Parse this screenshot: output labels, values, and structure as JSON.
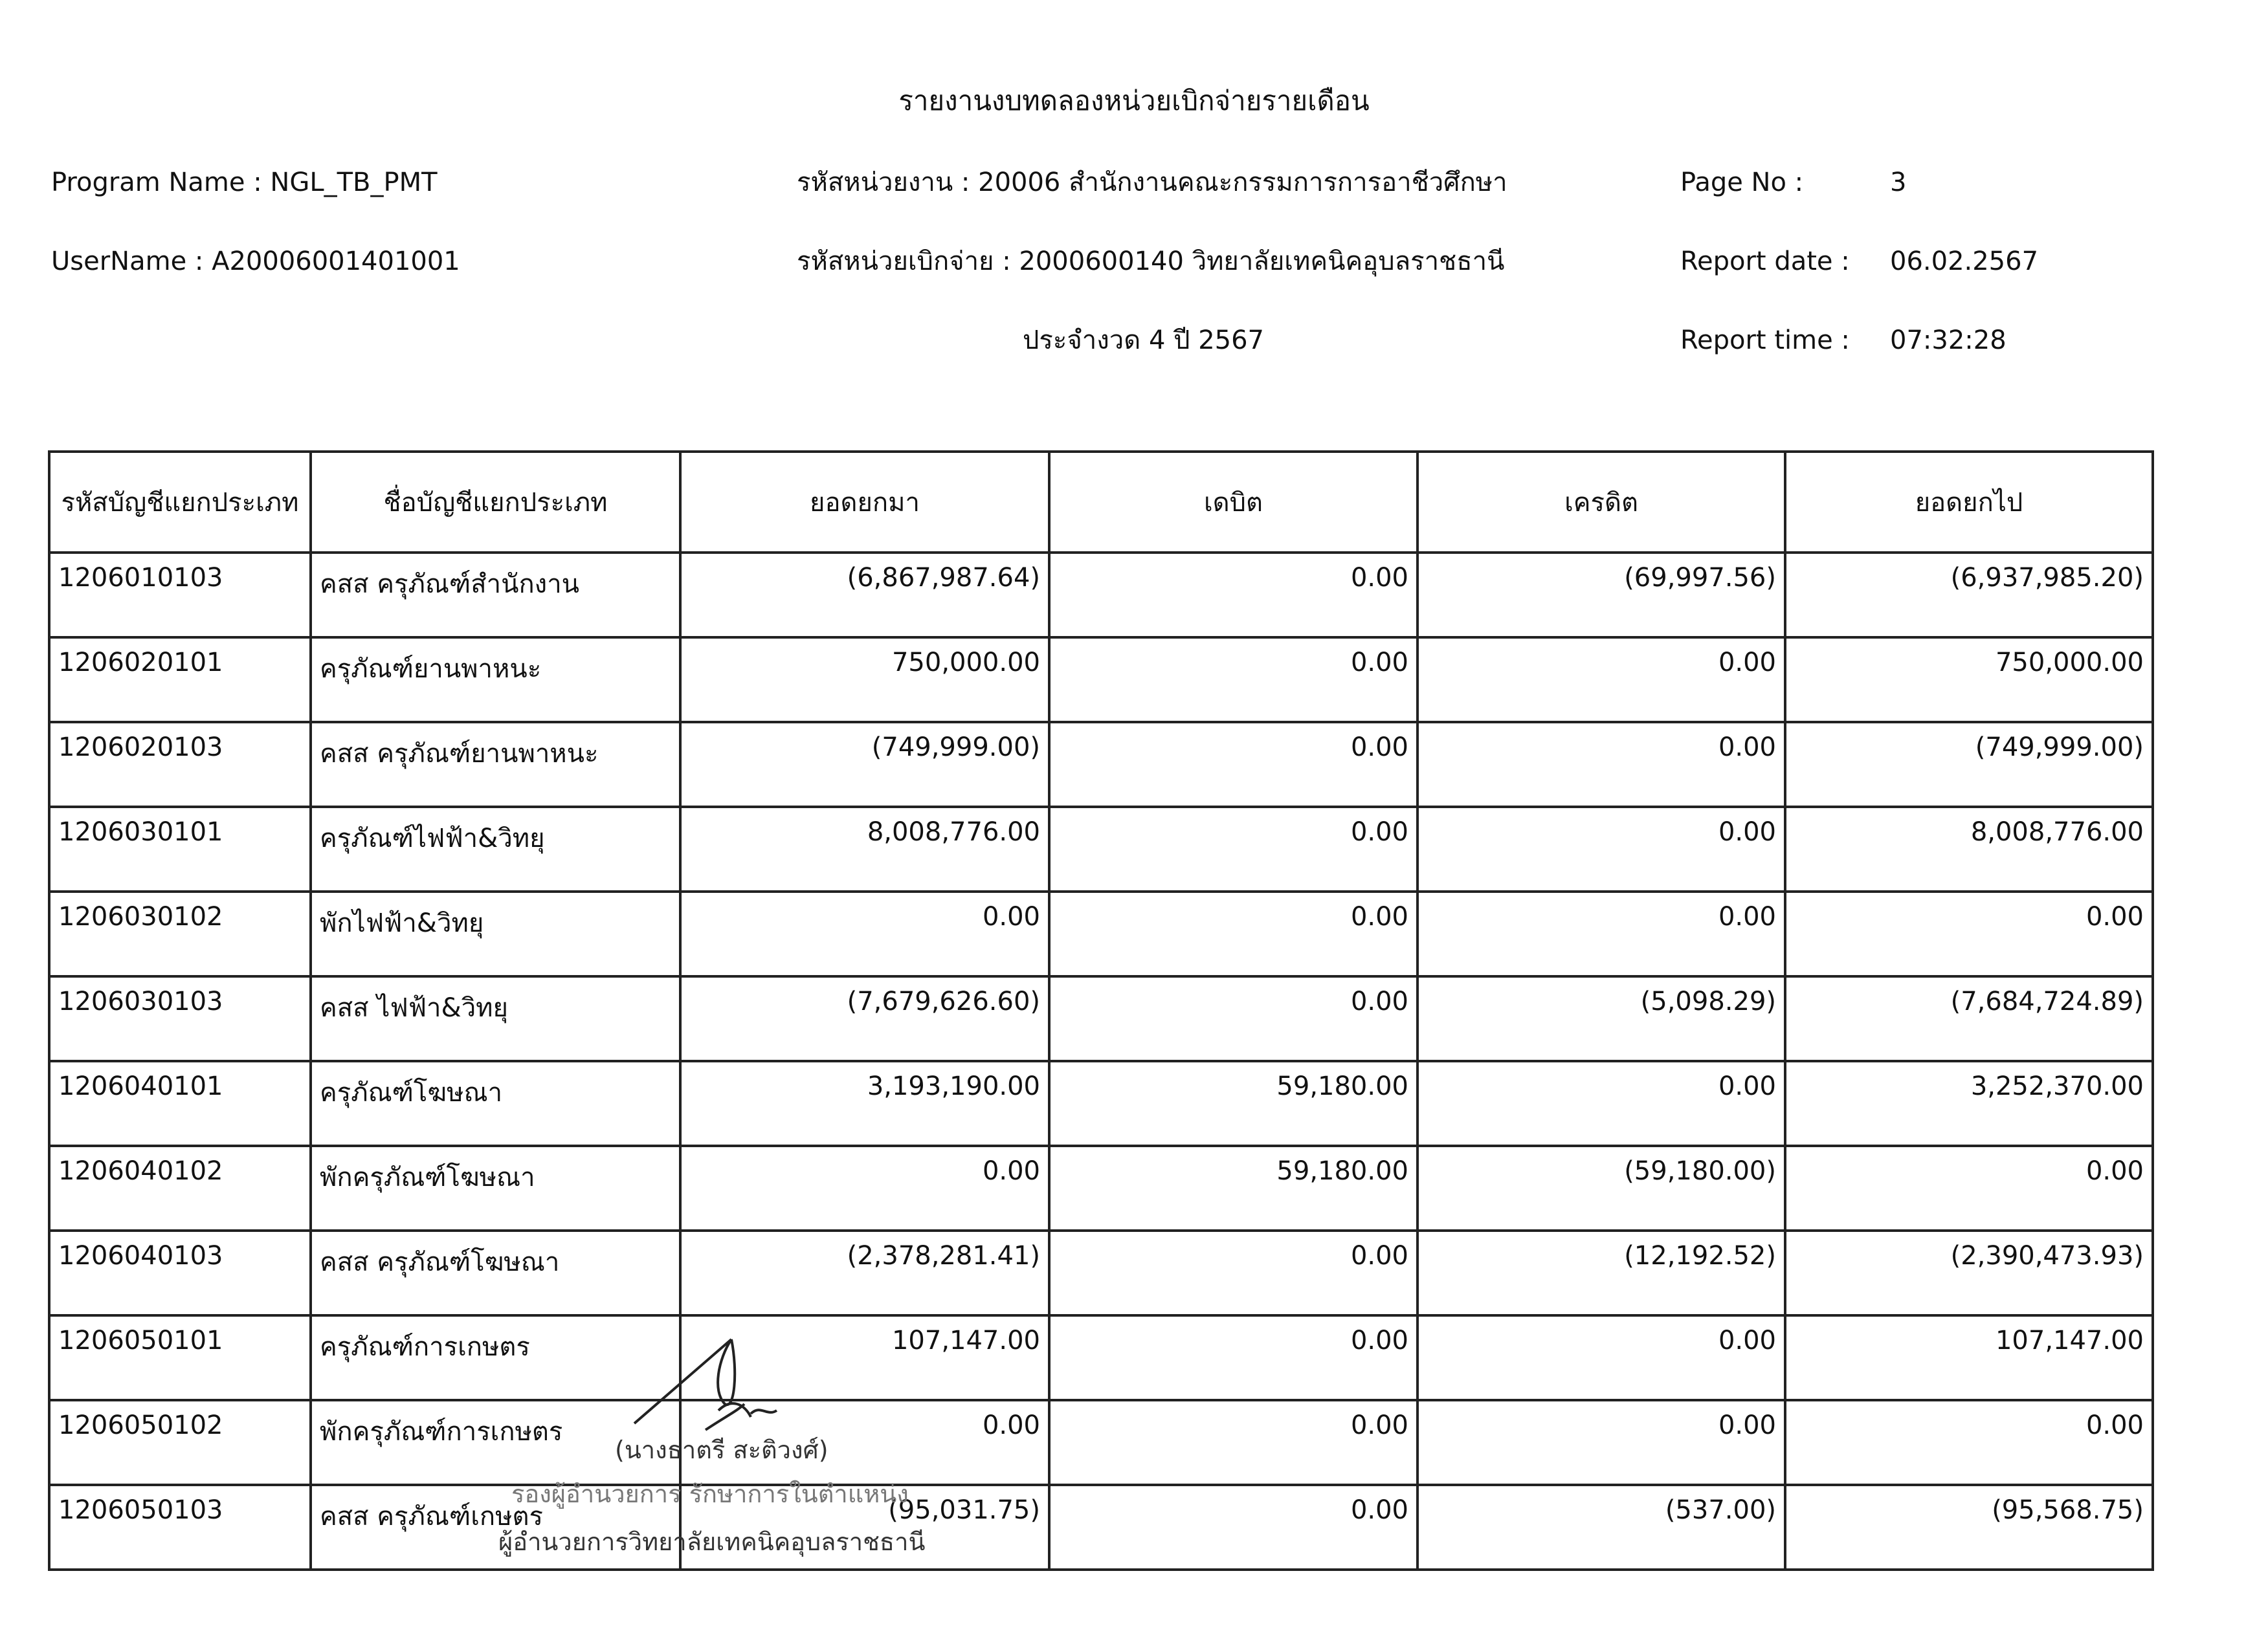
{
  "report": {
    "title": "รายงานงบทดลองหน่วยเบิกจ่ายรายเดือน",
    "program_name": "Program Name : NGL_TB_PMT",
    "user_name": "UserName : A20006001401001",
    "agency": "รหัสหน่วยงาน : 20006 สำนักงานคณะกรรมการการอาชีวศึกษา",
    "disbursing_unit": "รหัสหน่วยเบิกจ่าย : 2000600140 วิทยาลัยเทคนิคอุบลราชธานี",
    "period": "ประจำงวด 4 ปี 2567",
    "page_no_label": "Page No :",
    "page_no": "3",
    "report_date_label": "Report date :",
    "report_date": "06.02.2567",
    "report_time_label": "Report time :",
    "report_time": "07:32:28"
  },
  "table": {
    "headers": [
      "รหัสบัญชีแยกประเภท",
      "ชื่อบัญชีแยกประเภท",
      "ยอดยกมา",
      "เดบิต",
      "เครดิต",
      "ยอดยกไป"
    ],
    "rows": [
      [
        "1206010103",
        "คสส ครุภัณฑ์สำนักงาน",
        "(6,867,987.64)",
        "0.00",
        "(69,997.56)",
        "(6,937,985.20)"
      ],
      [
        "1206020101",
        "ครุภัณฑ์ยานพาหนะ",
        "750,000.00",
        "0.00",
        "0.00",
        "750,000.00"
      ],
      [
        "1206020103",
        "คสส ครุภัณฑ์ยานพาหนะ",
        "(749,999.00)",
        "0.00",
        "0.00",
        "(749,999.00)"
      ],
      [
        "1206030101",
        "ครุภัณฑ์ไฟฟ้า&วิทยุ",
        "8,008,776.00",
        "0.00",
        "0.00",
        "8,008,776.00"
      ],
      [
        "1206030102",
        "พักไฟฟ้า&วิทยุ",
        "0.00",
        "0.00",
        "0.00",
        "0.00"
      ],
      [
        "1206030103",
        "คสส ไฟฟ้า&วิทยุ",
        "(7,679,626.60)",
        "0.00",
        "(5,098.29)",
        "(7,684,724.89)"
      ],
      [
        "1206040101",
        "ครุภัณฑ์โฆษณา",
        "3,193,190.00",
        "59,180.00",
        "0.00",
        "3,252,370.00"
      ],
      [
        "1206040102",
        "พักครุภัณฑ์โฆษณา",
        "0.00",
        "59,180.00",
        "(59,180.00)",
        "0.00"
      ],
      [
        "1206040103",
        "คสส ครุภัณฑ์โฆษณา",
        "(2,378,281.41)",
        "0.00",
        "(12,192.52)",
        "(2,390,473.93)"
      ],
      [
        "1206050101",
        "ครุภัณฑ์การเกษตร",
        "107,147.00",
        "0.00",
        "0.00",
        "107,147.00"
      ],
      [
        "1206050102",
        "พักครุภัณฑ์การเกษตร",
        "0.00",
        "0.00",
        "0.00",
        "0.00"
      ],
      [
        "1206050103",
        "คสส ครุภัณฑ์เกษตร",
        "(95,031.75)",
        "0.00",
        "(537.00)",
        "(95,568.75)"
      ]
    ]
  },
  "signature": {
    "name": "(นางธาตรี สะติวงศ์)",
    "position_line1": "รองผู้อำนวยการ รักษาการในตำแหน่ง",
    "position_line2": "ผู้อำนวยการวิทยาลัยเทคนิคอุบลราชธานี"
  }
}
